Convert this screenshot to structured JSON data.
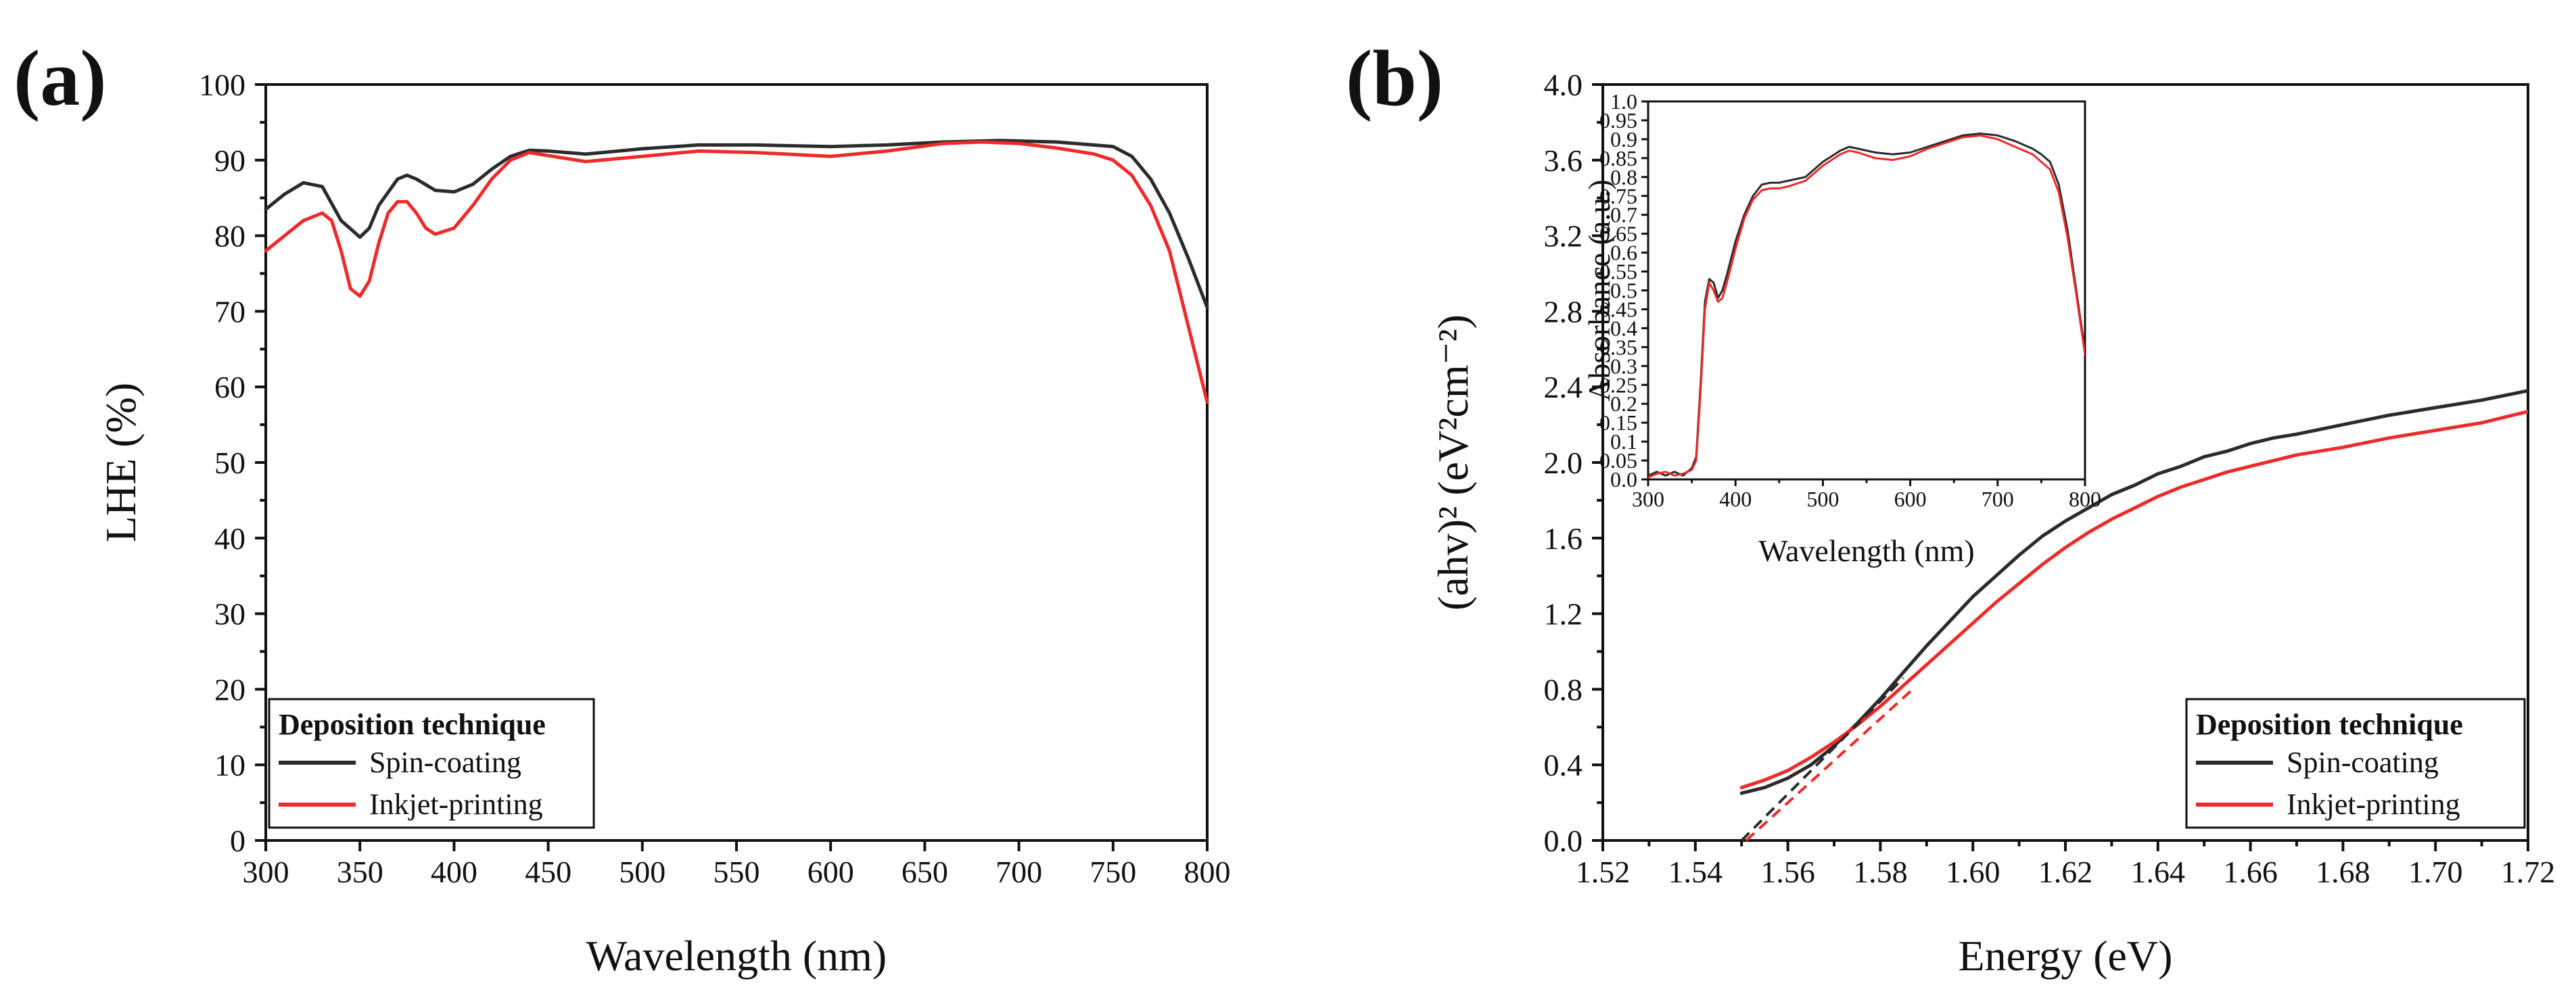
{
  "colors": {
    "spin": "#2b2b2b",
    "inkjet": "#ee2a2a",
    "axis": "#111111"
  },
  "chart_data": [
    {
      "panel": "(a)",
      "type": "line",
      "xlabel": "Wavelength (nm)",
      "ylabel": "LHE (%)",
      "xlim": [
        300,
        800
      ],
      "ylim": [
        0,
        100
      ],
      "xticks": [
        "300",
        "350",
        "400",
        "450",
        "500",
        "550",
        "600",
        "650",
        "700",
        "750",
        "800"
      ],
      "yticks": [
        "0",
        "10",
        "20",
        "30",
        "40",
        "50",
        "60",
        "70",
        "80",
        "90",
        "100"
      ],
      "legend": {
        "title": "Deposition technique",
        "position": "bottom-left",
        "labels": [
          "Spin-coating",
          "Inkjet-printing"
        ]
      },
      "series": [
        {
          "name": "Spin-coating",
          "color": "#2b2b2b",
          "x": [
            300,
            310,
            320,
            330,
            340,
            350,
            355,
            360,
            370,
            375,
            380,
            390,
            400,
            410,
            420,
            430,
            440,
            450,
            470,
            500,
            530,
            560,
            600,
            630,
            660,
            690,
            720,
            750,
            760,
            770,
            780,
            790,
            800
          ],
          "y": [
            83.5,
            85.5,
            87,
            86.5,
            82,
            79.8,
            81,
            84,
            87.5,
            88,
            87.5,
            86,
            85.8,
            86.8,
            88.8,
            90.5,
            91.3,
            91.2,
            90.8,
            91.5,
            92,
            92,
            91.8,
            92,
            92.4,
            92.6,
            92.4,
            91.8,
            90.5,
            87.5,
            83,
            77,
            70.5
          ]
        },
        {
          "name": "Inkjet-printing",
          "color": "#ee2a2a",
          "x": [
            300,
            310,
            320,
            330,
            335,
            340,
            345,
            350,
            355,
            360,
            365,
            370,
            375,
            380,
            385,
            390,
            400,
            410,
            420,
            430,
            440,
            450,
            470,
            500,
            530,
            560,
            600,
            630,
            660,
            680,
            700,
            720,
            740,
            750,
            760,
            770,
            780,
            790,
            800
          ],
          "y": [
            78,
            80,
            82,
            83,
            82,
            78,
            73,
            72,
            74,
            79,
            83,
            84.5,
            84.5,
            83,
            81,
            80.2,
            81,
            84,
            87.5,
            90,
            91,
            90.6,
            89.8,
            90.5,
            91.2,
            91,
            90.5,
            91.2,
            92.2,
            92.4,
            92.2,
            91.6,
            90.8,
            90,
            88,
            84,
            78,
            68,
            58
          ]
        }
      ]
    },
    {
      "panel": "(b)",
      "type": "line",
      "xlabel": "Energy (eV)",
      "ylabel": "(ahv)² (eV²cm⁻²)",
      "xlim": [
        1.52,
        1.72
      ],
      "ylim": [
        0,
        4.0
      ],
      "xticks": [
        "1.52",
        "1.54",
        "1.56",
        "1.58",
        "1.60",
        "1.62",
        "1.64",
        "1.66",
        "1.68",
        "1.70",
        "1.72"
      ],
      "yticks": [
        "0.0",
        "0.4",
        "0.8",
        "1.2",
        "1.6",
        "2.0",
        "2.4",
        "2.8",
        "3.2",
        "3.6",
        "4.0"
      ],
      "legend": {
        "title": "Deposition technique",
        "position": "bottom-right",
        "labels": [
          "Spin-coating",
          "Inkjet-printing"
        ]
      },
      "series": [
        {
          "name": "Spin-coating",
          "color": "#2b2b2b",
          "x": [
            1.55,
            1.555,
            1.56,
            1.565,
            1.57,
            1.575,
            1.58,
            1.585,
            1.59,
            1.595,
            1.6,
            1.605,
            1.61,
            1.615,
            1.62,
            1.625,
            1.63,
            1.635,
            1.64,
            1.645,
            1.65,
            1.655,
            1.66,
            1.665,
            1.67,
            1.68,
            1.69,
            1.7,
            1.71,
            1.72
          ],
          "y": [
            0.25,
            0.28,
            0.33,
            0.4,
            0.5,
            0.62,
            0.75,
            0.89,
            1.03,
            1.16,
            1.29,
            1.4,
            1.51,
            1.61,
            1.69,
            1.76,
            1.83,
            1.88,
            1.94,
            1.98,
            2.03,
            2.06,
            2.1,
            2.13,
            2.15,
            2.2,
            2.25,
            2.29,
            2.33,
            2.38
          ]
        },
        {
          "name": "Inkjet-printing",
          "color": "#ee2a2a",
          "x": [
            1.55,
            1.555,
            1.56,
            1.565,
            1.57,
            1.575,
            1.58,
            1.585,
            1.59,
            1.595,
            1.6,
            1.605,
            1.61,
            1.615,
            1.62,
            1.625,
            1.63,
            1.635,
            1.64,
            1.645,
            1.65,
            1.655,
            1.66,
            1.665,
            1.67,
            1.68,
            1.69,
            1.7,
            1.71,
            1.72
          ],
          "y": [
            0.28,
            0.32,
            0.37,
            0.44,
            0.52,
            0.61,
            0.71,
            0.82,
            0.93,
            1.04,
            1.15,
            1.26,
            1.36,
            1.46,
            1.55,
            1.63,
            1.7,
            1.76,
            1.82,
            1.87,
            1.91,
            1.95,
            1.98,
            2.01,
            2.04,
            2.08,
            2.13,
            2.17,
            2.21,
            2.27
          ]
        }
      ],
      "fit_lines": [
        {
          "x": [
            1.55,
            1.585
          ],
          "y": [
            0.0,
            0.86
          ],
          "color": "#2b2b2b"
        },
        {
          "x": [
            1.551,
            1.587
          ],
          "y": [
            0.0,
            0.8
          ],
          "color": "#ee2a2a"
        }
      ],
      "inset": {
        "type": "line",
        "xlabel": "Wavelength (nm)",
        "ylabel": "Absorbance (a.u.)",
        "xlim": [
          300,
          800
        ],
        "ylim": [
          0,
          1.0
        ],
        "xticks": [
          "300",
          "400",
          "500",
          "600",
          "700",
          "800"
        ],
        "yticks": [
          "0.0",
          "0.05",
          "0.1",
          "0.15",
          "0.2",
          "0.25",
          "0.3",
          "0.35",
          "0.4",
          "0.45",
          "0.5",
          "0.55",
          "0.6",
          "0.65",
          "0.7",
          "0.75",
          "0.8",
          "0.85",
          "0.9",
          "0.95",
          "1.0"
        ],
        "series": [
          {
            "name": "Spin-coating",
            "color": "#2b2b2b",
            "x": [
              300,
              310,
              320,
              330,
              340,
              350,
              355,
              360,
              365,
              370,
              375,
              380,
              385,
              390,
              400,
              410,
              420,
              430,
              440,
              450,
              460,
              480,
              500,
              520,
              530,
              540,
              560,
              580,
              600,
              620,
              640,
              660,
              680,
              700,
              720,
              740,
              750,
              760,
              770,
              780,
              790,
              800
            ],
            "y": [
              0.01,
              0.02,
              0.01,
              0.02,
              0.01,
              0.03,
              0.06,
              0.25,
              0.47,
              0.53,
              0.52,
              0.48,
              0.5,
              0.54,
              0.63,
              0.7,
              0.75,
              0.78,
              0.785,
              0.785,
              0.79,
              0.8,
              0.84,
              0.87,
              0.88,
              0.875,
              0.865,
              0.86,
              0.865,
              0.88,
              0.895,
              0.91,
              0.915,
              0.91,
              0.895,
              0.875,
              0.86,
              0.84,
              0.78,
              0.66,
              0.5,
              0.34
            ]
          },
          {
            "name": "Inkjet-printing",
            "color": "#ee2a2a",
            "x": [
              300,
              310,
              320,
              330,
              340,
              350,
              355,
              360,
              365,
              370,
              375,
              380,
              385,
              390,
              400,
              410,
              420,
              430,
              440,
              450,
              460,
              480,
              500,
              520,
              530,
              540,
              560,
              580,
              600,
              620,
              640,
              660,
              680,
              700,
              720,
              740,
              750,
              760,
              770,
              780,
              790,
              800
            ],
            "y": [
              0.005,
              0.015,
              0.02,
              0.01,
              0.015,
              0.025,
              0.05,
              0.23,
              0.45,
              0.52,
              0.5,
              0.47,
              0.48,
              0.52,
              0.61,
              0.69,
              0.74,
              0.765,
              0.77,
              0.77,
              0.775,
              0.79,
              0.83,
              0.86,
              0.87,
              0.865,
              0.85,
              0.845,
              0.855,
              0.875,
              0.89,
              0.905,
              0.91,
              0.9,
              0.88,
              0.86,
              0.84,
              0.82,
              0.76,
              0.64,
              0.49,
              0.33
            ]
          }
        ]
      }
    }
  ]
}
